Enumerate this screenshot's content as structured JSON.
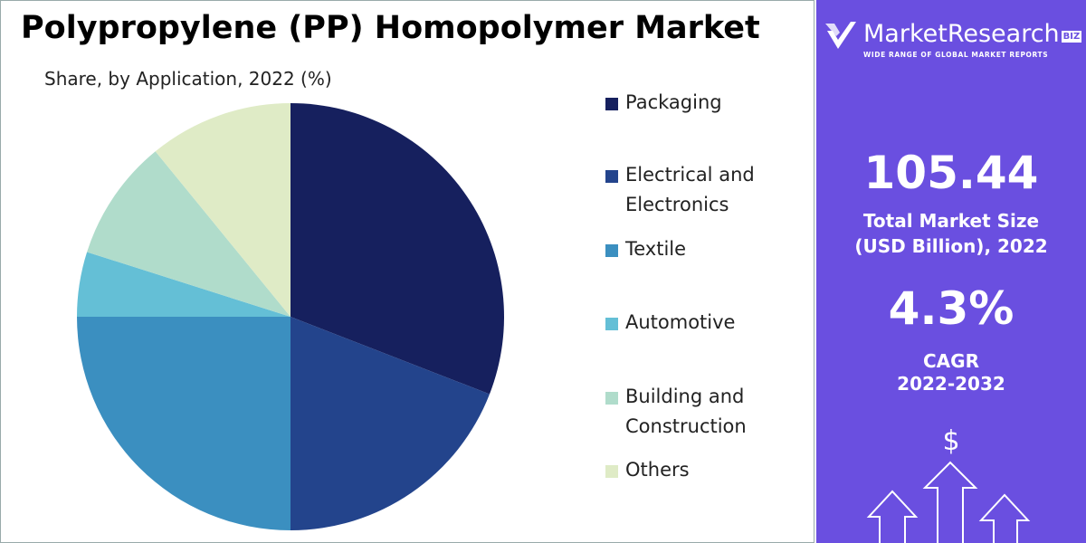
{
  "chart_data": {
    "type": "pie",
    "title": "Polypropylene (PP) Homopolymer Market",
    "subtitle": "Share, by Application, 2022 (%)",
    "categories": [
      "Packaging",
      "Electrical and Electronics",
      "Textile",
      "Automotive",
      "Building and Construction",
      "Others"
    ],
    "values": [
      30.9,
      19.1,
      25.0,
      4.9,
      9.2,
      10.9
    ],
    "colors": [
      "#16205e",
      "#23448c",
      "#3b8fc0",
      "#64bfd6",
      "#b0dccb",
      "#dfebc6"
    ]
  },
  "panel": {
    "brand": "MarketResearch",
    "brand_suffix": "BIZ",
    "tagline": "WIDE RANGE OF GLOBAL MARKET REPORTS",
    "market_size": "105.44",
    "market_size_label": "Total Market Size (USD Billion), 2022",
    "cagr": "4.3%",
    "cagr_label": "CAGR",
    "cagr_period": "2022-2032",
    "currency_icon": "$"
  }
}
